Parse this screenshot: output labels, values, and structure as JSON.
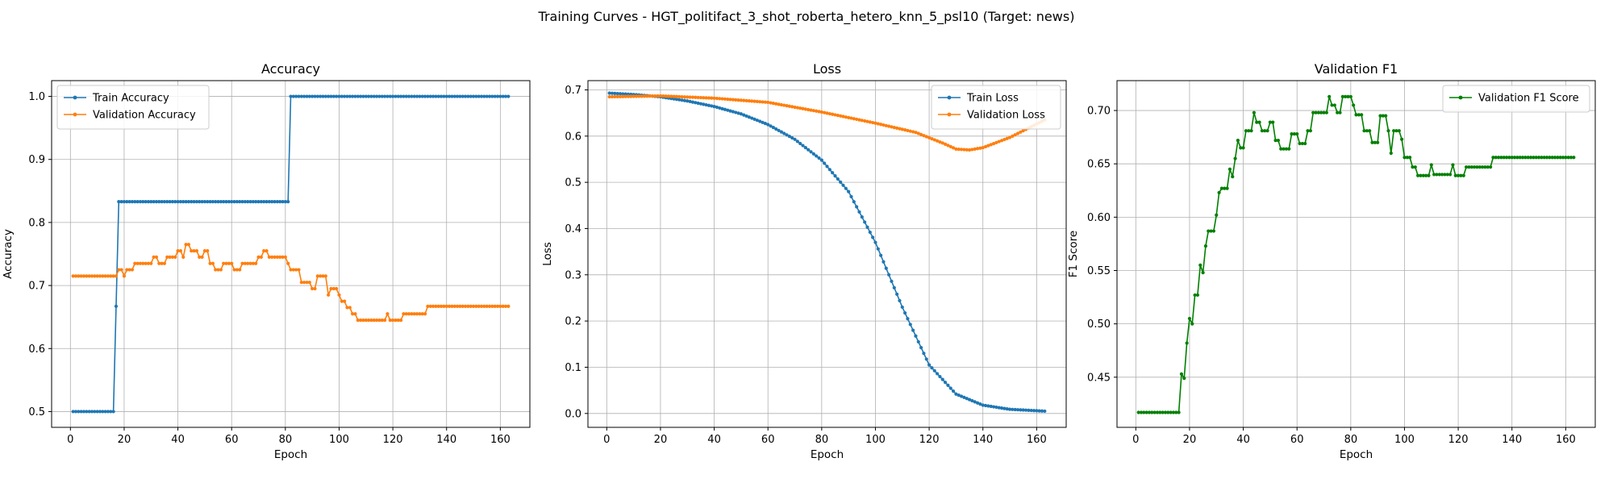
{
  "figure": {
    "suptitle": "Training Curves - HGT_politifact_3_shot_roberta_hetero_knn_5_psl10 (Target: news)"
  },
  "colors": {
    "train": "#1f77b4",
    "val": "#ff7f0e",
    "f1": "#008000",
    "grid": "#b0b0b0"
  },
  "chart_data": [
    {
      "type": "line",
      "title": "Accuracy",
      "xlabel": "Epoch",
      "ylabel": "Accuracy",
      "xlim": [
        -7,
        171
      ],
      "ylim": [
        0.475,
        1.025
      ],
      "xticks": [
        0,
        20,
        40,
        60,
        80,
        100,
        120,
        140,
        160
      ],
      "yticks": [
        0.5,
        0.6,
        0.7,
        0.8,
        0.9,
        1.0
      ],
      "ytick_labels": [
        "0.5",
        "0.6",
        "0.7",
        "0.8",
        "0.9",
        "1.0"
      ],
      "grid": true,
      "legend_position": "top-left",
      "series": [
        {
          "name": "Train Accuracy",
          "color": "#1f77b4",
          "points": [
            [
              1,
              0.5
            ],
            [
              16,
              0.5
            ],
            [
              17,
              0.667
            ],
            [
              18,
              0.833
            ],
            [
              81,
              0.833
            ],
            [
              82,
              1.0
            ],
            [
              163,
              1.0
            ]
          ]
        },
        {
          "name": "Validation Accuracy",
          "color": "#ff7f0e",
          "points": [
            [
              1,
              0.715
            ],
            [
              17,
              0.715
            ],
            [
              18,
              0.725
            ],
            [
              20,
              0.715
            ],
            [
              21,
              0.725
            ],
            [
              24,
              0.735
            ],
            [
              31,
              0.745
            ],
            [
              33,
              0.735
            ],
            [
              36,
              0.745
            ],
            [
              40,
              0.755
            ],
            [
              42,
              0.745
            ],
            [
              43,
              0.765
            ],
            [
              45,
              0.755
            ],
            [
              48,
              0.745
            ],
            [
              50,
              0.755
            ],
            [
              52,
              0.735
            ],
            [
              54,
              0.725
            ],
            [
              57,
              0.735
            ],
            [
              61,
              0.725
            ],
            [
              64,
              0.735
            ],
            [
              70,
              0.745
            ],
            [
              72,
              0.755
            ],
            [
              74,
              0.745
            ],
            [
              81,
              0.735
            ],
            [
              82,
              0.725
            ],
            [
              86,
              0.705
            ],
            [
              90,
              0.695
            ],
            [
              92,
              0.715
            ],
            [
              96,
              0.685
            ],
            [
              97,
              0.695
            ],
            [
              100,
              0.685
            ],
            [
              101,
              0.675
            ],
            [
              103,
              0.665
            ],
            [
              105,
              0.655
            ],
            [
              107,
              0.645
            ],
            [
              118,
              0.655
            ],
            [
              119,
              0.645
            ],
            [
              124,
              0.655
            ],
            [
              133,
              0.667
            ],
            [
              163,
              0.667
            ]
          ]
        }
      ]
    },
    {
      "type": "line",
      "title": "Loss",
      "xlabel": "Epoch",
      "ylabel": "Loss",
      "xlim": [
        -7,
        171
      ],
      "ylim": [
        -0.03,
        0.72
      ],
      "xticks": [
        0,
        20,
        40,
        60,
        80,
        100,
        120,
        140,
        160
      ],
      "yticks": [
        0.0,
        0.1,
        0.2,
        0.3,
        0.4,
        0.5,
        0.6,
        0.7
      ],
      "ytick_labels": [
        "0.0",
        "0.1",
        "0.2",
        "0.3",
        "0.4",
        "0.5",
        "0.6",
        "0.7"
      ],
      "grid": true,
      "legend_position": "top-right",
      "series": [
        {
          "name": "Train Loss",
          "color": "#1f77b4",
          "points": [
            [
              1,
              0.693
            ],
            [
              10,
              0.69
            ],
            [
              20,
              0.685
            ],
            [
              30,
              0.676
            ],
            [
              40,
              0.664
            ],
            [
              50,
              0.648
            ],
            [
              60,
              0.625
            ],
            [
              70,
              0.593
            ],
            [
              80,
              0.548
            ],
            [
              90,
              0.48
            ],
            [
              100,
              0.37
            ],
            [
              110,
              0.23
            ],
            [
              120,
              0.105
            ],
            [
              130,
              0.042
            ],
            [
              140,
              0.018
            ],
            [
              150,
              0.009
            ],
            [
              163,
              0.005
            ]
          ]
        },
        {
          "name": "Validation Loss",
          "color": "#ff7f0e",
          "points": [
            [
              1,
              0.685
            ],
            [
              20,
              0.687
            ],
            [
              40,
              0.682
            ],
            [
              60,
              0.673
            ],
            [
              80,
              0.652
            ],
            [
              100,
              0.628
            ],
            [
              115,
              0.608
            ],
            [
              125,
              0.585
            ],
            [
              130,
              0.572
            ],
            [
              135,
              0.57
            ],
            [
              140,
              0.575
            ],
            [
              150,
              0.597
            ],
            [
              163,
              0.635
            ]
          ]
        }
      ]
    },
    {
      "type": "line",
      "title": "Validation F1",
      "xlabel": "Epoch",
      "ylabel": "F1 Score",
      "xlim": [
        -7,
        171
      ],
      "ylim": [
        0.403,
        0.728
      ],
      "xticks": [
        0,
        20,
        40,
        60,
        80,
        100,
        120,
        140,
        160
      ],
      "yticks": [
        0.45,
        0.5,
        0.55,
        0.6,
        0.65,
        0.7
      ],
      "ytick_labels": [
        "0.45",
        "0.50",
        "0.55",
        "0.60",
        "0.65",
        "0.70"
      ],
      "grid": true,
      "legend_position": "top-right",
      "series": [
        {
          "name": "Validation F1 Score",
          "color": "#008000",
          "points": [
            [
              1,
              0.417
            ],
            [
              16,
              0.417
            ],
            [
              17,
              0.453
            ],
            [
              18,
              0.449
            ],
            [
              19,
              0.482
            ],
            [
              20,
              0.505
            ],
            [
              21,
              0.5
            ],
            [
              22,
              0.527
            ],
            [
              23,
              0.527
            ],
            [
              24,
              0.555
            ],
            [
              25,
              0.548
            ],
            [
              26,
              0.573
            ],
            [
              27,
              0.587
            ],
            [
              30,
              0.602
            ],
            [
              31,
              0.623
            ],
            [
              32,
              0.627
            ],
            [
              34,
              0.627
            ],
            [
              35,
              0.645
            ],
            [
              36,
              0.638
            ],
            [
              37,
              0.655
            ],
            [
              38,
              0.672
            ],
            [
              39,
              0.665
            ],
            [
              41,
              0.681
            ],
            [
              43,
              0.681
            ],
            [
              44,
              0.698
            ],
            [
              45,
              0.689
            ],
            [
              47,
              0.681
            ],
            [
              50,
              0.689
            ],
            [
              52,
              0.672
            ],
            [
              54,
              0.664
            ],
            [
              58,
              0.678
            ],
            [
              61,
              0.669
            ],
            [
              64,
              0.681
            ],
            [
              66,
              0.698
            ],
            [
              70,
              0.698
            ],
            [
              72,
              0.713
            ],
            [
              73,
              0.705
            ],
            [
              75,
              0.698
            ],
            [
              77,
              0.713
            ],
            [
              79,
              0.713
            ],
            [
              81,
              0.705
            ],
            [
              82,
              0.696
            ],
            [
              85,
              0.681
            ],
            [
              88,
              0.67
            ],
            [
              91,
              0.695
            ],
            [
              94,
              0.681
            ],
            [
              95,
              0.66
            ],
            [
              96,
              0.681
            ],
            [
              99,
              0.673
            ],
            [
              100,
              0.656
            ],
            [
              103,
              0.647
            ],
            [
              105,
              0.639
            ],
            [
              110,
              0.649
            ],
            [
              111,
              0.64
            ],
            [
              118,
              0.649
            ],
            [
              119,
              0.639
            ],
            [
              123,
              0.647
            ],
            [
              133,
              0.656
            ],
            [
              163,
              0.656
            ]
          ]
        }
      ]
    }
  ]
}
